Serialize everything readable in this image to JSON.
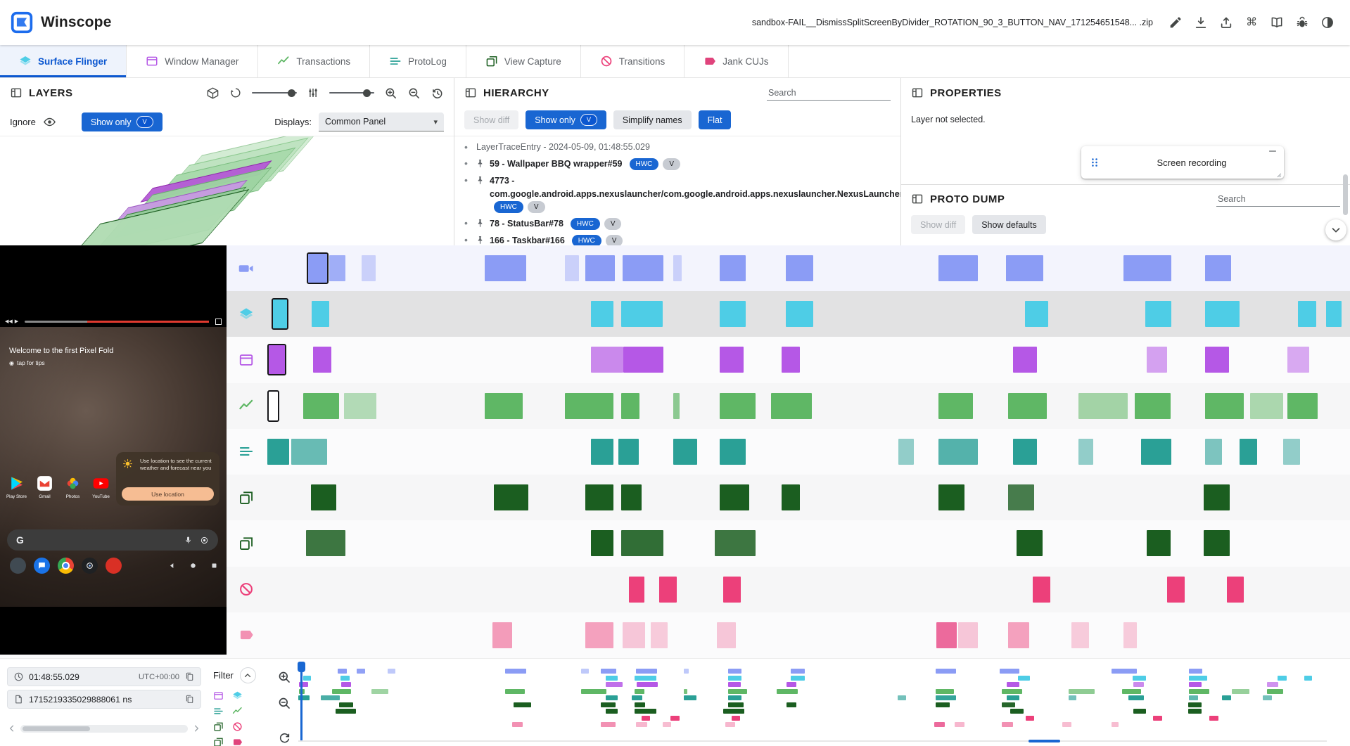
{
  "app_bar": {
    "title": "Winscope",
    "file_name": "sandbox-FAIL__DismissSplitScreenByDivider_ROTATION_90_3_BUTTON_NAV_171254651548... .zip",
    "actions": [
      {
        "name": "edit-file",
        "icon": "pencil"
      },
      {
        "name": "download-trace",
        "icon": "download"
      },
      {
        "name": "upload-trace",
        "icon": "upload"
      },
      {
        "name": "keyboard-shortcuts",
        "icon": "cmd"
      },
      {
        "name": "documentation",
        "icon": "book"
      },
      {
        "name": "report-bug",
        "icon": "bug"
      },
      {
        "name": "toggle-dark-mode",
        "icon": "theme"
      }
    ]
  },
  "tabs": [
    {
      "label": "Surface Flinger",
      "icon": "layers",
      "color": "#4ecde6",
      "active": true
    },
    {
      "label": "Window Manager",
      "icon": "window",
      "color": "#b558e6",
      "active": false
    },
    {
      "label": "Transactions",
      "icon": "chart",
      "color": "#5fb765",
      "active": false
    },
    {
      "label": "ProtoLog",
      "icon": "list",
      "color": "#2aa096",
      "active": false
    },
    {
      "label": "View Capture",
      "icon": "squares",
      "color": "#1b5e20",
      "active": false
    },
    {
      "label": "Transitions",
      "icon": "block",
      "color": "#ec407a",
      "active": false
    },
    {
      "label": "Jank CUJs",
      "icon": "tag",
      "color": "#e0447c",
      "active": false
    }
  ],
  "layers_panel": {
    "title": "LAYERS",
    "ignore_label": "Ignore",
    "show_only_label": "Show only",
    "v_chip": "V",
    "displays_label": "Displays:",
    "displays_value": "Common Panel"
  },
  "hierarchy_panel": {
    "title": "HIERARCHY",
    "search_placeholder": "Search",
    "show_diff": "Show diff",
    "show_only": "Show only",
    "v_chip": "V",
    "simplify_names": "Simplify names",
    "flat": "Flat",
    "root": "LayerTraceEntry - 2024-05-09, 01:48:55.029",
    "items": [
      {
        "label": "59 - Wallpaper BBQ wrapper#59",
        "chips": [
          "HWC",
          "V"
        ]
      },
      {
        "label": "4773 - com.google.android.apps.nexuslauncher/com.google.android.apps.nexuslauncher.NexusLauncherActivity#4773",
        "chips": [
          "HWC",
          "V"
        ]
      },
      {
        "label": "78 - StatusBar#78",
        "chips": [
          "HWC",
          "V"
        ]
      },
      {
        "label": "166 - Taskbar#166",
        "chips": [
          "HWC",
          "V"
        ]
      }
    ]
  },
  "properties_panel": {
    "title": "PROPERTIES",
    "empty_text": "Layer not selected.",
    "recording_title": "Screen recording"
  },
  "proto_dump_panel": {
    "title": "PROTO DUMP",
    "search_placeholder": "Search",
    "show_diff": "Show diff",
    "show_defaults": "Show defaults"
  },
  "screen_recording": {
    "welcome_title": "Welcome to the first Pixel Fold",
    "welcome_sub": "tap for tips",
    "notification_text": "Use location to see the current weather and forecast near you",
    "notification_button": "Use location",
    "google_letter": "G",
    "apps": [
      {
        "label": "Play Store",
        "icon": "playstore"
      },
      {
        "label": "Gmail",
        "icon": "gmail"
      },
      {
        "label": "Photos",
        "icon": "photos"
      },
      {
        "label": "YouTube",
        "icon": "youtube"
      }
    ],
    "dock_icons": [
      {
        "name": "all-apps",
        "color": "#404a52",
        "glyph": ""
      },
      {
        "name": "messages",
        "color": "#1a73e8",
        "glyph": "chat"
      },
      {
        "name": "chrome",
        "color": "",
        "glyph": "chrome"
      },
      {
        "name": "camera",
        "color": "#1f2123",
        "glyph": "camlens"
      },
      {
        "name": "google-tv",
        "color": "#d93025",
        "glyph": ""
      }
    ],
    "nav_icons": [
      "navback",
      "navhome",
      "navsquare"
    ]
  },
  "timeline": {
    "tracks": [
      {
        "name": "screen-recording",
        "icon": "videocam",
        "color": "#8b9cf5",
        "bg": "#f3f4fd",
        "segments": [
          {
            "x": 3.8,
            "w": 1.7,
            "sel": true
          },
          {
            "x": 5.7,
            "w": 1.5,
            "o": 0.8
          },
          {
            "x": 8.7,
            "w": 1.3,
            "o": 0.4
          },
          {
            "x": 20.1,
            "w": 3.8
          },
          {
            "x": 27.5,
            "w": 1.3,
            "o": 0.4
          },
          {
            "x": 29.4,
            "w": 2.7
          },
          {
            "x": 32.8,
            "w": 3.8
          },
          {
            "x": 37.5,
            "w": 0.8,
            "o": 0.4
          },
          {
            "x": 41.8,
            "w": 2.4
          },
          {
            "x": 47.9,
            "w": 2.5
          },
          {
            "x": 62.0,
            "w": 3.6
          },
          {
            "x": 68.2,
            "w": 3.5
          },
          {
            "x": 79.1,
            "w": 4.4
          },
          {
            "x": 86.6,
            "w": 2.4
          }
        ]
      },
      {
        "name": "surface-flinger",
        "icon": "layers",
        "color": "#4ecde6",
        "bg": "#e2e2e3",
        "segments": [
          {
            "x": 0.5,
            "w": 1.3,
            "sel": true
          },
          {
            "x": 4.1,
            "w": 1.6
          },
          {
            "x": 29.9,
            "w": 2.1
          },
          {
            "x": 32.7,
            "w": 3.8
          },
          {
            "x": 41.8,
            "w": 2.4
          },
          {
            "x": 47.9,
            "w": 2.5
          },
          {
            "x": 70.0,
            "w": 2.1
          },
          {
            "x": 81.1,
            "w": 2.4
          },
          {
            "x": 86.6,
            "w": 3.2
          },
          {
            "x": 95.2,
            "w": 1.7
          },
          {
            "x": 97.8,
            "w": 1.4
          }
        ]
      },
      {
        "name": "window-manager",
        "icon": "window",
        "color": "#b558e6",
        "bg": "#fbfbfc",
        "segments": [
          {
            "x": 0.1,
            "w": 1.5,
            "sel": true
          },
          {
            "x": 4.2,
            "w": 1.7
          },
          {
            "x": 29.9,
            "w": 3.0,
            "o": 0.7
          },
          {
            "x": 32.9,
            "w": 3.7
          },
          {
            "x": 41.8,
            "w": 2.2
          },
          {
            "x": 47.5,
            "w": 1.7
          },
          {
            "x": 68.9,
            "w": 2.2
          },
          {
            "x": 81.2,
            "w": 1.9,
            "o": 0.55
          },
          {
            "x": 86.6,
            "w": 2.2
          },
          {
            "x": 94.2,
            "w": 2.0,
            "o": 0.5
          }
        ]
      },
      {
        "name": "transactions",
        "icon": "chart",
        "color": "#5fb765",
        "bg": "#f6f6f7",
        "segments": [
          {
            "x": 0.1,
            "w": 0.9,
            "sel": true,
            "fill": "#ffffff"
          },
          {
            "x": 3.3,
            "w": 3.3
          },
          {
            "x": 7.1,
            "w": 3.0,
            "o": 0.45
          },
          {
            "x": 20.1,
            "w": 3.5
          },
          {
            "x": 27.5,
            "w": 4.5
          },
          {
            "x": 32.7,
            "w": 1.7
          },
          {
            "x": 37.5,
            "w": 0.6,
            "o": 0.7
          },
          {
            "x": 41.8,
            "w": 3.3
          },
          {
            "x": 46.5,
            "w": 3.8
          },
          {
            "x": 62.0,
            "w": 3.2
          },
          {
            "x": 68.4,
            "w": 3.6
          },
          {
            "x": 74.9,
            "w": 4.6,
            "o": 0.55
          },
          {
            "x": 80.1,
            "w": 3.3
          },
          {
            "x": 86.6,
            "w": 3.6
          },
          {
            "x": 90.8,
            "w": 3.0,
            "o": 0.5
          },
          {
            "x": 94.2,
            "w": 2.8
          }
        ]
      },
      {
        "name": "protolog",
        "icon": "list",
        "color": "#2aa096",
        "bg": "#fbfbfc",
        "segments": [
          {
            "x": 0.0,
            "w": 2.0
          },
          {
            "x": 2.2,
            "w": 3.3,
            "o": 0.7
          },
          {
            "x": 29.9,
            "w": 2.1
          },
          {
            "x": 32.4,
            "w": 1.9
          },
          {
            "x": 37.5,
            "w": 2.2
          },
          {
            "x": 41.8,
            "w": 2.4
          },
          {
            "x": 58.3,
            "w": 1.4,
            "o": 0.5
          },
          {
            "x": 62.0,
            "w": 3.6,
            "o": 0.8
          },
          {
            "x": 68.9,
            "w": 2.2
          },
          {
            "x": 74.9,
            "w": 1.4,
            "o": 0.5
          },
          {
            "x": 80.7,
            "w": 2.8
          },
          {
            "x": 86.6,
            "w": 1.6,
            "o": 0.6
          },
          {
            "x": 89.8,
            "w": 1.6
          },
          {
            "x": 93.8,
            "w": 1.6,
            "o": 0.5
          }
        ]
      },
      {
        "name": "view-capture-taskbar",
        "icon": "squares",
        "color": "#1b5e20",
        "bg": "#f6f6f7",
        "segments": [
          {
            "x": 4.0,
            "w": 2.4
          },
          {
            "x": 20.9,
            "w": 3.2
          },
          {
            "x": 29.4,
            "w": 2.6
          },
          {
            "x": 32.7,
            "w": 1.9
          },
          {
            "x": 41.8,
            "w": 2.7
          },
          {
            "x": 47.5,
            "w": 1.7
          },
          {
            "x": 62.0,
            "w": 2.4
          },
          {
            "x": 68.4,
            "w": 2.4,
            "o": 0.8
          },
          {
            "x": 86.5,
            "w": 2.4
          }
        ]
      },
      {
        "name": "view-capture-launcher",
        "icon": "squares",
        "color": "#1b5e20",
        "bg": "#fbfbfc",
        "segments": [
          {
            "x": 3.6,
            "w": 3.6,
            "o": 0.85
          },
          {
            "x": 29.9,
            "w": 2.1
          },
          {
            "x": 32.7,
            "w": 3.9,
            "o": 0.9
          },
          {
            "x": 41.3,
            "w": 3.8,
            "o": 0.85
          },
          {
            "x": 69.2,
            "w": 2.4
          },
          {
            "x": 81.2,
            "w": 2.2
          },
          {
            "x": 86.5,
            "w": 2.4
          }
        ]
      },
      {
        "name": "transitions",
        "icon": "block",
        "color": "#ec407a",
        "bg": "#f6f6f7",
        "segments": [
          {
            "x": 33.4,
            "w": 1.4
          },
          {
            "x": 36.2,
            "w": 1.6
          },
          {
            "x": 42.1,
            "w": 1.6
          },
          {
            "x": 70.7,
            "w": 1.6
          },
          {
            "x": 83.1,
            "w": 1.6
          },
          {
            "x": 88.6,
            "w": 1.6
          }
        ]
      },
      {
        "name": "jank-cujs",
        "icon": "tag",
        "color": "#f291b3",
        "bg": "#fbfbfc",
        "segments": [
          {
            "x": 20.8,
            "w": 1.8,
            "o": 0.9
          },
          {
            "x": 29.4,
            "w": 2.6,
            "o": 0.85
          },
          {
            "x": 32.8,
            "w": 2.1,
            "o": 0.5
          },
          {
            "x": 35.4,
            "w": 1.6,
            "o": 0.45
          },
          {
            "x": 41.5,
            "w": 1.8,
            "o": 0.5
          },
          {
            "x": 61.8,
            "w": 1.9,
            "c": "#ec6a9c"
          },
          {
            "x": 63.8,
            "w": 1.8,
            "o": 0.5
          },
          {
            "x": 68.4,
            "w": 2.0,
            "o": 0.85
          },
          {
            "x": 74.3,
            "w": 1.6,
            "o": 0.45
          },
          {
            "x": 79.1,
            "w": 1.2,
            "o": 0.45
          }
        ]
      }
    ]
  },
  "bottom_bar": {
    "time": "01:48:55.029",
    "timezone": "UTC+00:00",
    "ns": "1715219335029888061 ns",
    "filter_label": "Filter",
    "filter_icons": [
      {
        "name": "window-manager",
        "icon": "window",
        "color": "#b558e6"
      },
      {
        "name": "surface-flinger",
        "icon": "layers",
        "color": "#4ecde6"
      },
      {
        "name": "protolog",
        "icon": "list",
        "color": "#2aa096"
      },
      {
        "name": "transactions",
        "icon": "chart",
        "color": "#5fb765"
      },
      {
        "name": "view-capture",
        "icon": "squares",
        "color": "#1b5e20"
      },
      {
        "name": "transitions",
        "icon": "block",
        "color": "#ec407a"
      },
      {
        "name": "view-capture-2",
        "icon": "squares",
        "color": "#1b5e20"
      },
      {
        "name": "jank-cujs",
        "icon": "tag",
        "color": "#e0447c"
      }
    ]
  },
  "colors": {
    "accent": "#1966d2",
    "chip_grey": "#c7cbd2"
  }
}
